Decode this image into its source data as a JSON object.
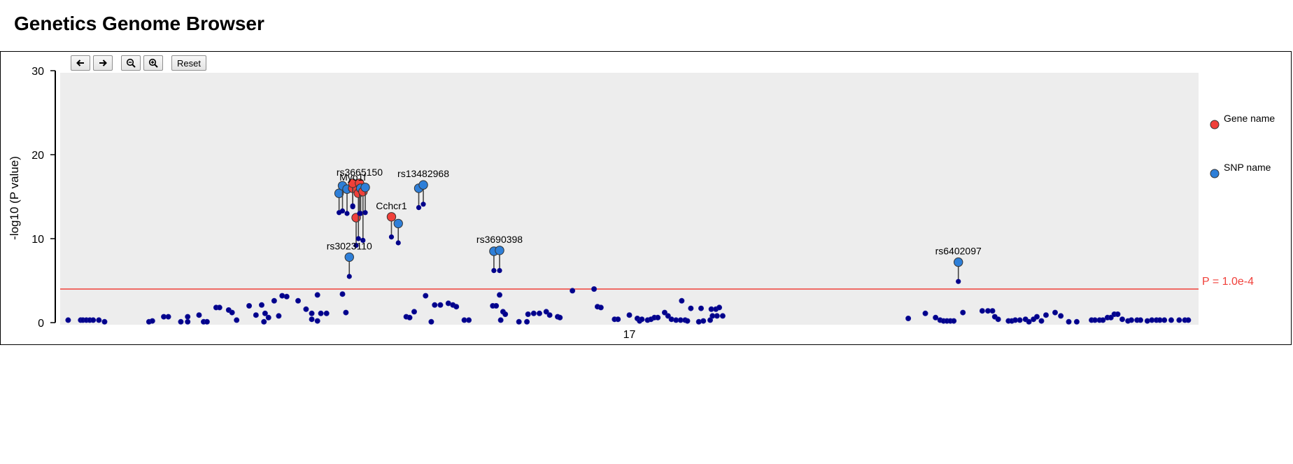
{
  "page": {
    "title": "Genetics Genome Browser"
  },
  "toolbar": {
    "pan_left_icon": "arrow-left-icon",
    "pan_right_icon": "arrow-right-icon",
    "zoom_out_icon": "zoom-out-icon",
    "zoom_in_icon": "zoom-in-icon",
    "reset_label": "Reset"
  },
  "colors": {
    "gene": "#f0403a",
    "snp": "#2e7fd8",
    "point": "#00008b",
    "threshold": "#f0403a",
    "plot_bg": "#ededed"
  },
  "chart_data": {
    "type": "scatter",
    "title": "",
    "ylabel": "-log10 (P value)",
    "xlabel": "",
    "x_tick_labels": [
      "17"
    ],
    "ylim": [
      0,
      30
    ],
    "y_ticks": [
      0,
      10,
      20,
      30
    ],
    "xlim": [
      0,
      100
    ],
    "x_ticks": [
      50
    ],
    "grid": false,
    "threshold": {
      "value": 4.0,
      "label": "P = 1.0e-4"
    },
    "legend": {
      "placement": "right",
      "entries": [
        {
          "label": "Gene name",
          "color": "#f0403a"
        },
        {
          "label": "SNP name",
          "color": "#2e7fd8"
        }
      ]
    },
    "background_points": [
      [
        0.7,
        0.3
      ],
      [
        1.8,
        0.3
      ],
      [
        2.0,
        0.3
      ],
      [
        2.3,
        0.3
      ],
      [
        2.6,
        0.3
      ],
      [
        2.9,
        0.3
      ],
      [
        3.4,
        0.3
      ],
      [
        3.9,
        0.1
      ],
      [
        7.8,
        0.1
      ],
      [
        8.1,
        0.2
      ],
      [
        9.1,
        0.7
      ],
      [
        9.5,
        0.7
      ],
      [
        10.6,
        0.1
      ],
      [
        11.2,
        0.7
      ],
      [
        11.2,
        0.1
      ],
      [
        12.2,
        0.9
      ],
      [
        12.6,
        0.1
      ],
      [
        12.9,
        0.1
      ],
      [
        13.7,
        1.8
      ],
      [
        14.0,
        1.8
      ],
      [
        14.8,
        1.5
      ],
      [
        15.1,
        1.2
      ],
      [
        15.5,
        0.3
      ],
      [
        16.6,
        2.0
      ],
      [
        17.2,
        0.9
      ],
      [
        17.7,
        2.1
      ],
      [
        18.0,
        1.1
      ],
      [
        17.9,
        0.1
      ],
      [
        18.3,
        0.6
      ],
      [
        18.8,
        2.6
      ],
      [
        19.2,
        0.8
      ],
      [
        19.5,
        3.2
      ],
      [
        19.9,
        3.1
      ],
      [
        20.9,
        2.6
      ],
      [
        21.6,
        1.6
      ],
      [
        22.1,
        0.4
      ],
      [
        22.1,
        1.1
      ],
      [
        22.6,
        3.3
      ],
      [
        22.6,
        0.2
      ],
      [
        22.9,
        1.1
      ],
      [
        23.4,
        1.1
      ],
      [
        24.8,
        3.4
      ],
      [
        25.1,
        1.2
      ],
      [
        30.4,
        0.7
      ],
      [
        30.7,
        0.6
      ],
      [
        31.1,
        1.3
      ],
      [
        32.1,
        3.2
      ],
      [
        32.6,
        0.1
      ],
      [
        32.9,
        2.1
      ],
      [
        33.4,
        2.1
      ],
      [
        34.1,
        2.3
      ],
      [
        34.5,
        2.1
      ],
      [
        34.8,
        1.9
      ],
      [
        35.5,
        0.3
      ],
      [
        35.9,
        0.3
      ],
      [
        38.0,
        2.0
      ],
      [
        38.3,
        2.0
      ],
      [
        38.6,
        3.3
      ],
      [
        38.7,
        0.3
      ],
      [
        38.9,
        1.3
      ],
      [
        39.1,
        1.0
      ],
      [
        40.3,
        0.1
      ],
      [
        41.0,
        0.1
      ],
      [
        41.1,
        1.0
      ],
      [
        41.6,
        1.1
      ],
      [
        42.1,
        1.1
      ],
      [
        42.7,
        1.3
      ],
      [
        43.0,
        0.9
      ],
      [
        43.7,
        0.7
      ],
      [
        43.9,
        0.6
      ],
      [
        45.0,
        3.8
      ],
      [
        46.9,
        4.0
      ],
      [
        47.2,
        1.9
      ],
      [
        47.5,
        1.8
      ],
      [
        48.7,
        0.4
      ],
      [
        49.0,
        0.4
      ],
      [
        50.0,
        0.9
      ],
      [
        50.7,
        0.5
      ],
      [
        50.9,
        0.2
      ],
      [
        51.1,
        0.4
      ],
      [
        51.6,
        0.3
      ],
      [
        51.9,
        0.4
      ],
      [
        52.2,
        0.6
      ],
      [
        52.5,
        0.6
      ],
      [
        53.1,
        1.2
      ],
      [
        53.4,
        0.8
      ],
      [
        53.7,
        0.4
      ],
      [
        54.1,
        0.3
      ],
      [
        54.6,
        2.6
      ],
      [
        54.5,
        0.3
      ],
      [
        54.9,
        0.3
      ],
      [
        55.1,
        0.2
      ],
      [
        55.4,
        1.7
      ],
      [
        56.3,
        1.7
      ],
      [
        56.1,
        0.1
      ],
      [
        56.5,
        0.2
      ],
      [
        57.1,
        0.3
      ],
      [
        57.2,
        1.6
      ],
      [
        57.6,
        1.6
      ],
      [
        57.9,
        1.8
      ],
      [
        57.3,
        0.8
      ],
      [
        57.7,
        0.8
      ],
      [
        58.2,
        0.8
      ],
      [
        74.5,
        0.5
      ],
      [
        76.0,
        1.1
      ],
      [
        76.9,
        0.6
      ],
      [
        77.3,
        0.3
      ],
      [
        77.6,
        0.2
      ],
      [
        77.9,
        0.2
      ],
      [
        78.2,
        0.2
      ],
      [
        78.5,
        0.2
      ],
      [
        79.3,
        1.2
      ],
      [
        81.0,
        1.4
      ],
      [
        81.5,
        1.4
      ],
      [
        81.9,
        1.4
      ],
      [
        82.1,
        0.7
      ],
      [
        82.4,
        0.4
      ],
      [
        83.3,
        0.2
      ],
      [
        83.6,
        0.2
      ],
      [
        83.9,
        0.3
      ],
      [
        84.3,
        0.3
      ],
      [
        84.8,
        0.4
      ],
      [
        85.1,
        0.1
      ],
      [
        85.5,
        0.4
      ],
      [
        85.8,
        0.7
      ],
      [
        86.2,
        0.2
      ],
      [
        86.6,
        0.9
      ],
      [
        87.4,
        1.2
      ],
      [
        87.9,
        0.8
      ],
      [
        88.6,
        0.1
      ],
      [
        89.3,
        0.1
      ],
      [
        90.6,
        0.3
      ],
      [
        90.9,
        0.3
      ],
      [
        91.3,
        0.3
      ],
      [
        91.6,
        0.3
      ],
      [
        92.0,
        0.6
      ],
      [
        92.3,
        0.6
      ],
      [
        92.6,
        1.0
      ],
      [
        92.9,
        1.0
      ],
      [
        93.3,
        0.4
      ],
      [
        93.8,
        0.2
      ],
      [
        94.1,
        0.3
      ],
      [
        94.6,
        0.3
      ],
      [
        94.9,
        0.3
      ],
      [
        95.5,
        0.2
      ],
      [
        95.9,
        0.3
      ],
      [
        96.3,
        0.3
      ],
      [
        96.6,
        0.3
      ],
      [
        97.0,
        0.3
      ],
      [
        97.6,
        0.3
      ],
      [
        98.3,
        0.3
      ],
      [
        98.8,
        0.3
      ],
      [
        99.1,
        0.3
      ]
    ],
    "labeled_snps": [
      {
        "x": 24.5,
        "base_y": 13.1,
        "top_y": 15.4,
        "kind": "snp"
      },
      {
        "x": 24.8,
        "base_y": 13.3,
        "top_y": 16.3,
        "kind": "snp"
      },
      {
        "x": 25.2,
        "base_y": 13.0,
        "top_y": 15.9,
        "kind": "snp"
      },
      {
        "x": 25.7,
        "base_y": 13.8,
        "top_y": 16.0,
        "kind": "gene",
        "label": "Myo1f"
      },
      {
        "x": 25.7,
        "base_y": 13.9,
        "top_y": 16.6,
        "kind": "gene"
      },
      {
        "x": 26.0,
        "base_y": 9.2,
        "top_y": 12.5,
        "kind": "gene"
      },
      {
        "x": 26.2,
        "base_y": 10.0,
        "top_y": 15.4,
        "kind": "gene"
      },
      {
        "x": 26.3,
        "base_y": 13.0,
        "top_y": 16.6,
        "kind": "gene",
        "label": "rs3665150"
      },
      {
        "x": 26.4,
        "base_y": 13.0,
        "top_y": 16.0,
        "kind": "snp"
      },
      {
        "x": 26.6,
        "base_y": 9.8,
        "top_y": 15.6,
        "kind": "gene"
      },
      {
        "x": 26.8,
        "base_y": 13.1,
        "top_y": 16.1,
        "kind": "snp"
      },
      {
        "x": 25.4,
        "base_y": 5.5,
        "top_y": 7.8,
        "kind": "snp",
        "label": "rs3023110"
      },
      {
        "x": 29.1,
        "base_y": 10.2,
        "top_y": 12.6,
        "kind": "gene",
        "label": "Cchcr1"
      },
      {
        "x": 29.7,
        "base_y": 9.5,
        "top_y": 11.8,
        "kind": "snp"
      },
      {
        "x": 31.5,
        "base_y": 13.7,
        "top_y": 16.0,
        "kind": "snp"
      },
      {
        "x": 31.9,
        "base_y": 14.1,
        "top_y": 16.4,
        "kind": "snp",
        "label": "rs13482968"
      },
      {
        "x": 38.1,
        "base_y": 6.2,
        "top_y": 8.5,
        "kind": "snp"
      },
      {
        "x": 38.6,
        "base_y": 6.2,
        "top_y": 8.6,
        "kind": "snp",
        "label": "rs3690398"
      },
      {
        "x": 78.9,
        "base_y": 4.9,
        "top_y": 7.2,
        "kind": "snp",
        "label": "rs6402097"
      }
    ]
  }
}
